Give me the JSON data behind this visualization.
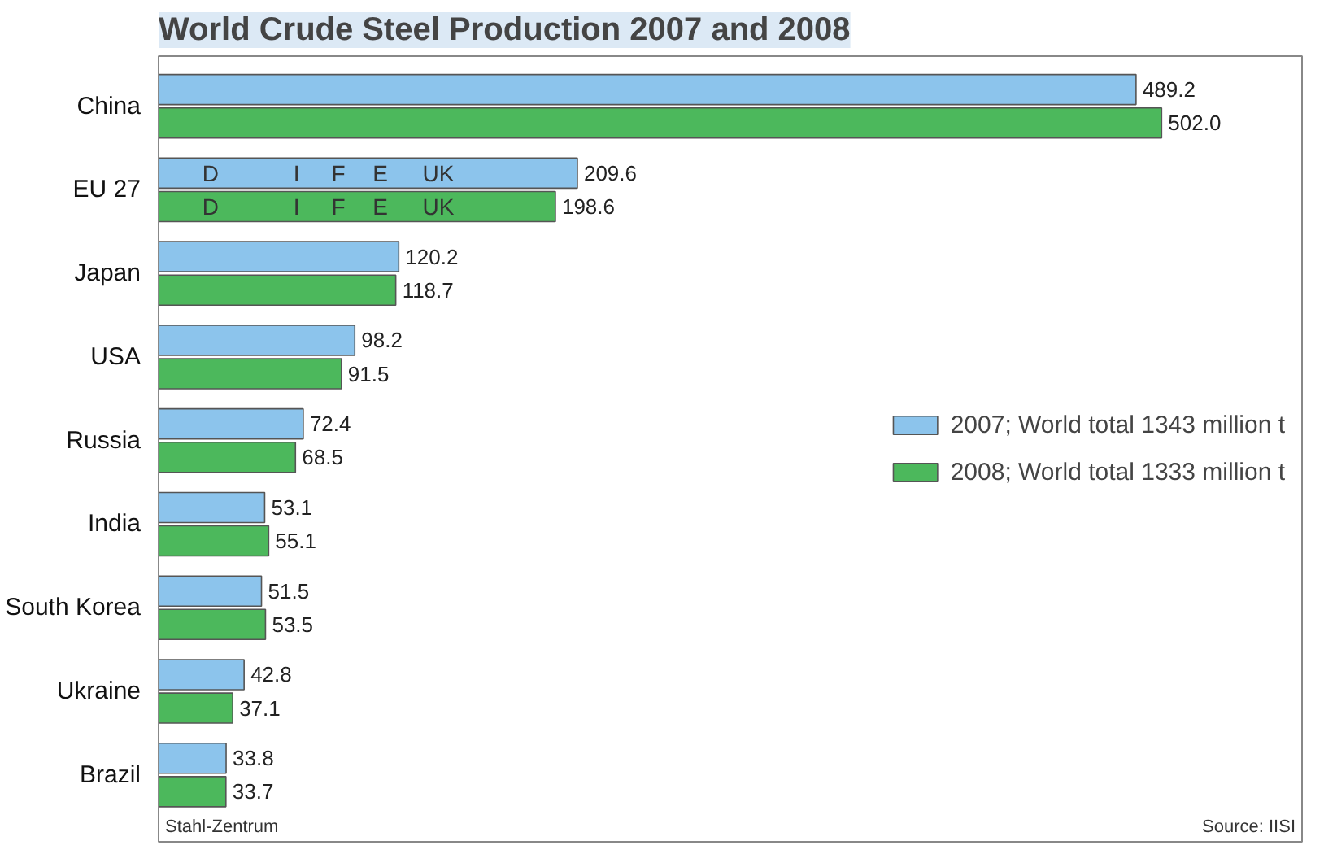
{
  "chart_data": {
    "type": "bar",
    "orientation": "horizontal",
    "title": "World Crude Steel Production 2007 and 2008",
    "categories": [
      "China",
      "EU 27",
      "Japan",
      "USA",
      "Russia",
      "India",
      "South Korea",
      "Ukraine",
      "Brazil"
    ],
    "series": [
      {
        "name": "2007; World total 1343 million t",
        "color": "#8cc4ec",
        "values": [
          489.2,
          209.6,
          120.2,
          98.2,
          72.4,
          53.1,
          51.5,
          42.8,
          33.8
        ],
        "value_labels": [
          "489.2",
          "209.6",
          "120.2",
          "98.2",
          "72.4",
          "53.1",
          "51.5",
          "42.8",
          "33.8"
        ]
      },
      {
        "name": "2008; World total 1333 million t",
        "color": "#4cb85c",
        "values": [
          502.0,
          198.6,
          118.7,
          91.5,
          68.5,
          55.1,
          53.5,
          37.1,
          33.7
        ],
        "value_labels": [
          "502.0",
          "198.6",
          "118.7",
          "91.5",
          "68.5",
          "55.1",
          "53.5",
          "37.1",
          "33.7"
        ]
      }
    ],
    "legend": "right",
    "grid": false,
    "annotations": [
      {
        "text": "D",
        "x": 26,
        "y": "EU 27"
      },
      {
        "text": "I",
        "x": 69,
        "y": "EU 27"
      },
      {
        "text": "F",
        "x": 90,
        "y": "EU 27"
      },
      {
        "text": "E",
        "x": 111,
        "y": "EU 27"
      },
      {
        "text": "UK",
        "x": 140,
        "y": "EU 27"
      },
      "Stahl-Zentrum",
      "Source: IISI"
    ]
  }
}
